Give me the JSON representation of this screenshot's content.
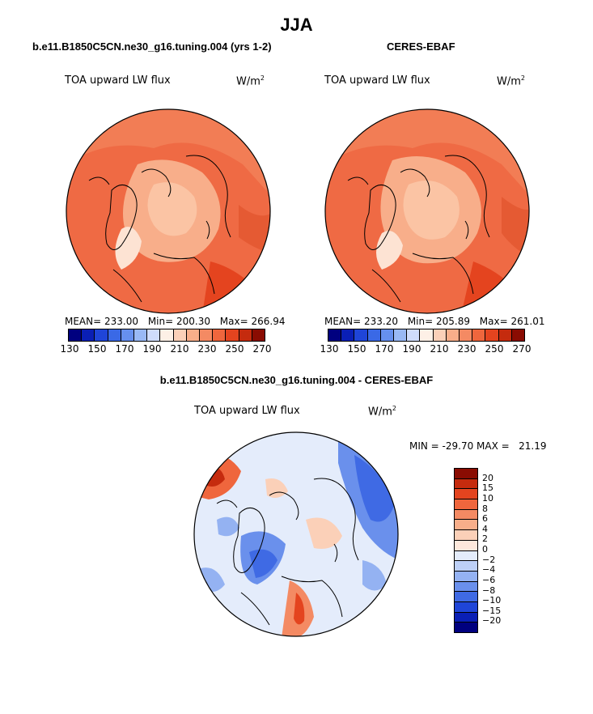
{
  "figure": {
    "title": "JJA"
  },
  "panel_left": {
    "header": "b.e11.B1850C5CN.ne30_g16.tuning.004 (yrs 1-2)",
    "variable": "TOA upward LW flux",
    "units": "W/m",
    "units_sup": "2",
    "mean_text": "MEAN= 233.00",
    "min_text": "Min= 200.30",
    "max_text": "Max= 266.94"
  },
  "panel_right": {
    "header": "CERES-EBAF",
    "variable": "TOA upward LW flux",
    "units": "W/m",
    "units_sup": "2",
    "mean_text": "MEAN= 233.20",
    "min_text": "Min= 205.89",
    "max_text": "Max= 261.01"
  },
  "colorbar_top": {
    "colors": [
      "#00007f",
      "#0a1fb5",
      "#1f45d8",
      "#3a69e6",
      "#6690ee",
      "#99b9f5",
      "#cfdcfb",
      "#fdf0e6",
      "#fbd0b8",
      "#f8ae8a",
      "#f48a63",
      "#ef663d",
      "#e4441f",
      "#c52b0e",
      "#8a0c02"
    ],
    "tick_labels": [
      "130",
      "150",
      "170",
      "190",
      "210",
      "230",
      "250",
      "270"
    ]
  },
  "panel_bottom": {
    "header": "b.e11.B1850C5CN.ne30_g16.tuning.004 - CERES-EBAF",
    "variable": "TOA upward LW flux",
    "units": "W/m",
    "units_sup": "2",
    "minmax_text": "MIN = -29.70 MAX =   21.19"
  },
  "colorbar_diff": {
    "colors": [
      "#8a0c02",
      "#c52b0e",
      "#e4441f",
      "#ef663d",
      "#f48a63",
      "#f8ae8a",
      "#fbd0b8",
      "#fde8dc",
      "#e4ecfb",
      "#bdd0f7",
      "#94b2f2",
      "#6a90ec",
      "#3f6ae4",
      "#1f45d8",
      "#0a1fb5",
      "#00007f"
    ],
    "labels": [
      "20",
      "15",
      "10",
      "8",
      "6",
      "4",
      "2",
      "0",
      "−2",
      "−4",
      "−6",
      "−8",
      "−10",
      "−15",
      "−20"
    ]
  }
}
